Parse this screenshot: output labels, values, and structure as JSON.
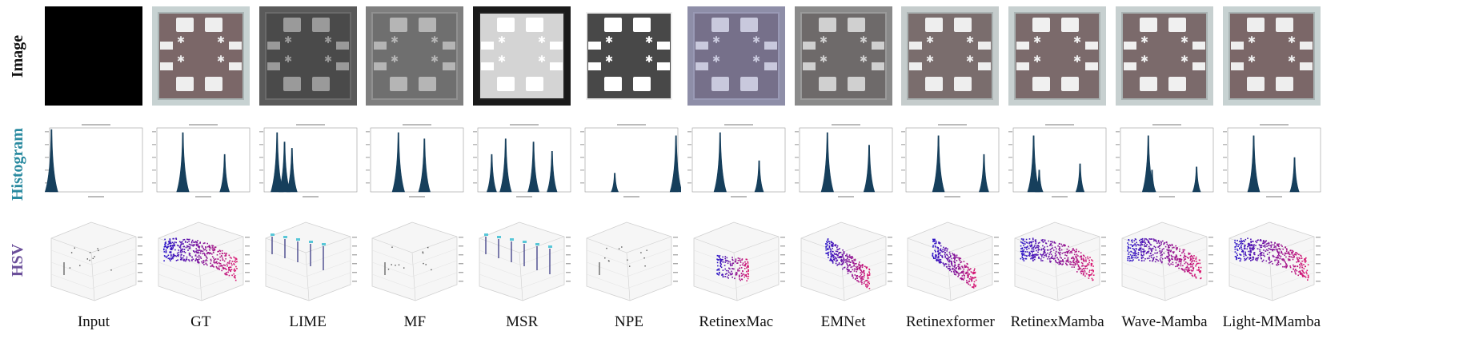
{
  "row_labels": [
    {
      "text": "Image",
      "color": "#111111"
    },
    {
      "text": "Histogram",
      "color": "#2a8aa0"
    },
    {
      "text": "HSV",
      "color": "#6b4f9a"
    }
  ],
  "methods": [
    {
      "label": "Input",
      "bg": "#000000",
      "board": "#000000",
      "pad": "#000000",
      "border": "#000000",
      "hist": [
        [
          0.02,
          1.0
        ]
      ],
      "hsv": "sparse"
    },
    {
      "label": "GT",
      "bg": "#c7d2d2",
      "board": "#7b6768",
      "pad": "#eeeeee",
      "border": "#a9b4b4",
      "hist": [
        [
          0.28,
          0.95
        ],
        [
          0.73,
          0.6
        ]
      ],
      "hsv": "dense"
    },
    {
      "label": "LIME",
      "bg": "#5a5a5a",
      "board": "#4a4a4a",
      "pad": "#9a9a9a",
      "border": "#6a6a6a",
      "hist": [
        [
          0.14,
          0.95
        ],
        [
          0.22,
          0.8
        ],
        [
          0.3,
          0.7
        ]
      ],
      "hsv": "columns"
    },
    {
      "label": "MF",
      "bg": "#7f7f7f",
      "board": "#6f6f6f",
      "pad": "#b5b5b5",
      "border": "#909090",
      "hist": [
        [
          0.3,
          0.95
        ],
        [
          0.58,
          0.85
        ]
      ],
      "hsv": "sparse"
    },
    {
      "label": "MSR",
      "bg": "#1a1a1a",
      "board": "#d4d4d4",
      "pad": "#ffffff",
      "border": "#202020",
      "hist": [
        [
          0.15,
          0.6
        ],
        [
          0.3,
          0.85
        ],
        [
          0.6,
          0.8
        ],
        [
          0.8,
          0.65
        ]
      ],
      "hsv": "columns"
    },
    {
      "label": "NPE",
      "bg": "#ffffff",
      "board": "#484848",
      "pad": "#ffffff",
      "border": "#eeeeee",
      "hist": [
        [
          0.32,
          0.3
        ],
        [
          0.98,
          0.9
        ]
      ],
      "hsv": "sparse"
    },
    {
      "label": "RetinexMac",
      "bg": "#8e8ea8",
      "board": "#76708a",
      "pad": "#c9c9dd",
      "border": "#9999b5",
      "hist": [
        [
          0.3,
          0.95
        ],
        [
          0.72,
          0.5
        ]
      ],
      "hsv": "small"
    },
    {
      "label": "EMNet",
      "bg": "#8a8a8a",
      "board": "#6e6a6a",
      "pad": "#d0d0d0",
      "border": "#9a9a9a",
      "hist": [
        [
          0.3,
          0.95
        ],
        [
          0.75,
          0.75
        ]
      ],
      "hsv": "medium"
    },
    {
      "label": "Retinexformer",
      "bg": "#c5cccc",
      "board": "#7a6d6d",
      "pad": "#eeeeee",
      "border": "#aab2b2",
      "hist": [
        [
          0.35,
          0.9
        ],
        [
          0.84,
          0.6
        ]
      ],
      "hsv": "medium"
    },
    {
      "label": "RetinexMamba",
      "bg": "#c7d0d0",
      "board": "#7b6a6b",
      "pad": "#f0f0f0",
      "border": "#aab3b3",
      "hist": [
        [
          0.22,
          0.9
        ],
        [
          0.28,
          0.35
        ],
        [
          0.72,
          0.45
        ]
      ],
      "hsv": "dense"
    },
    {
      "label": "Wave-Mamba",
      "bg": "#c7d0d0",
      "board": "#7b6a6b",
      "pad": "#f0f0f0",
      "border": "#aab3b3",
      "hist": [
        [
          0.3,
          0.9
        ],
        [
          0.34,
          0.35
        ],
        [
          0.82,
          0.4
        ]
      ],
      "hsv": "dense"
    },
    {
      "label": "Light-MMamba",
      "bg": "#c7d2d2",
      "board": "#7b6768",
      "pad": "#eeeeee",
      "border": "#a9b4b4",
      "hist": [
        [
          0.28,
          0.9
        ],
        [
          0.72,
          0.55
        ]
      ],
      "hsv": "dense"
    }
  ]
}
